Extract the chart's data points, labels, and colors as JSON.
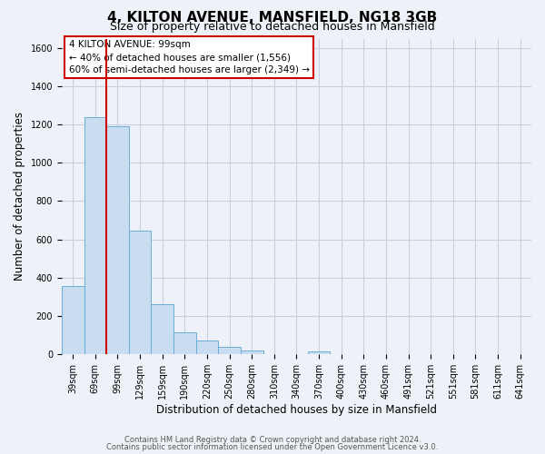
{
  "title": "4, KILTON AVENUE, MANSFIELD, NG18 3GB",
  "subtitle": "Size of property relative to detached houses in Mansfield",
  "xlabel": "Distribution of detached houses by size in Mansfield",
  "ylabel": "Number of detached properties",
  "categories": [
    "39sqm",
    "69sqm",
    "99sqm",
    "129sqm",
    "159sqm",
    "190sqm",
    "220sqm",
    "250sqm",
    "280sqm",
    "310sqm",
    "340sqm",
    "370sqm",
    "400sqm",
    "430sqm",
    "460sqm",
    "491sqm",
    "521sqm",
    "551sqm",
    "581sqm",
    "611sqm",
    "641sqm"
  ],
  "bar_heights": [
    355,
    1240,
    1190,
    645,
    260,
    115,
    72,
    38,
    20,
    0,
    0,
    15,
    0,
    0,
    0,
    0,
    0,
    0,
    0,
    0,
    0
  ],
  "bar_color": "#c9ddf0",
  "bar_edge_color": "#6aaed6",
  "red_line_color": "#cc0000",
  "annotation_line1": "4 KILTON AVENUE: 99sqm",
  "annotation_line2": "← 40% of detached houses are smaller (1,556)",
  "annotation_line3": "60% of semi-detached houses are larger (2,349) →",
  "ylim": [
    0,
    1650
  ],
  "yticks": [
    0,
    200,
    400,
    600,
    800,
    1000,
    1200,
    1400,
    1600
  ],
  "footer_line1": "Contains HM Land Registry data © Crown copyright and database right 2024.",
  "footer_line2": "Contains public sector information licensed under the Open Government Licence v3.0.",
  "background_color": "#eef2f8",
  "plot_background_color": "#eef2f8",
  "grid_color": "#c8d0e0",
  "title_fontsize": 11,
  "subtitle_fontsize": 9,
  "label_fontsize": 8.5,
  "tick_fontsize": 7,
  "annotation_fontsize": 7.5,
  "footer_fontsize": 6
}
